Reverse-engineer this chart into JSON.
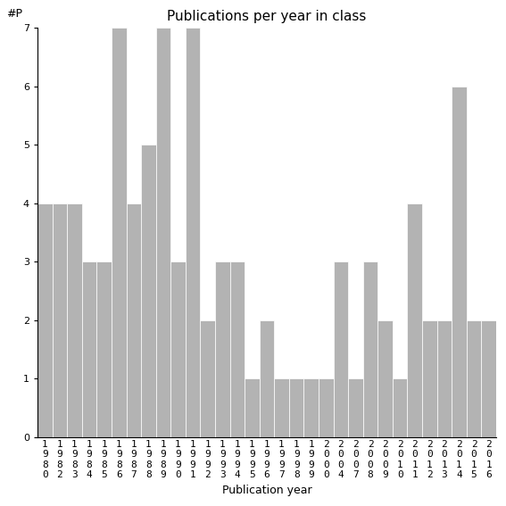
{
  "title": "Publications per year in class",
  "xlabel": "Publication year",
  "ylabel": "#P",
  "categories": [
    "1980",
    "1982",
    "1983",
    "1984",
    "1985",
    "1986",
    "1987",
    "1988",
    "1989",
    "1990",
    "1991",
    "1992",
    "1993",
    "1994",
    "1995",
    "1996",
    "1997",
    "1998",
    "1999",
    "2000",
    "2004",
    "2007",
    "2008",
    "2009",
    "2010",
    "2011",
    "2012",
    "2013",
    "2014",
    "2015",
    "2016"
  ],
  "values": [
    4,
    4,
    4,
    3,
    3,
    7,
    4,
    5,
    7,
    3,
    7,
    2,
    3,
    3,
    1,
    2,
    1,
    1,
    1,
    1,
    3,
    1,
    3,
    2,
    1,
    4,
    2,
    2,
    6,
    2,
    2
  ],
  "bar_color": "#b3b3b3",
  "bar_edge_color": "#ffffff",
  "ylim": [
    0,
    7
  ],
  "yticks": [
    0,
    1,
    2,
    3,
    4,
    5,
    6,
    7
  ],
  "title_fontsize": 11,
  "axis_label_fontsize": 9,
  "tick_fontsize": 8,
  "background_color": "#ffffff"
}
